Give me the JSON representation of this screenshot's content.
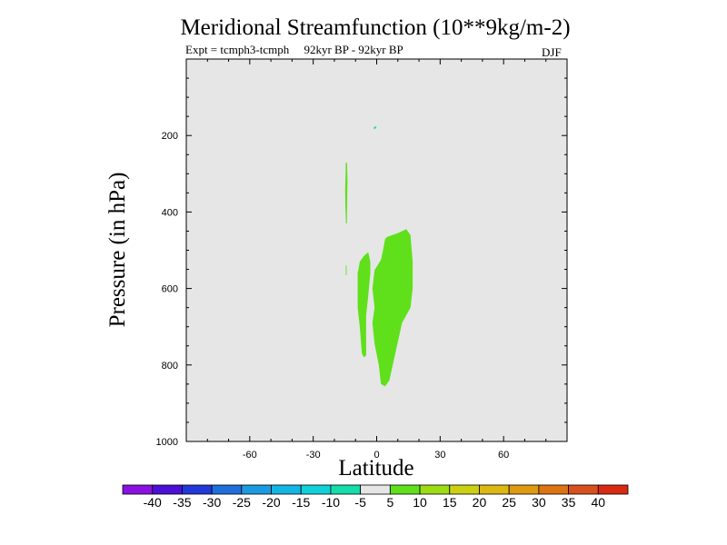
{
  "chart_data": {
    "type": "contour",
    "title": "Meridional Streamfunction (10**9kg/m-2)",
    "subtitle": "Expt = tcmph3-tcmph     92kyr BP - 92kyr BP",
    "season": "DJF",
    "xlabel": "Latitude",
    "ylabel": "Pressure (in hPa)",
    "xlim": [
      -90,
      90
    ],
    "ylim": [
      1000,
      0
    ],
    "xticks": [
      -60,
      -30,
      0,
      30,
      60
    ],
    "xtick_labels": [
      "-60",
      "-30",
      "0",
      "30",
      "60"
    ],
    "yticks": [
      200,
      400,
      600,
      800,
      1000
    ],
    "ytick_labels": [
      "200",
      "400",
      "600",
      "800",
      "1000"
    ],
    "background_color": "#e6e6e6",
    "colorbar": {
      "levels": [
        "-40",
        "-35",
        "-30",
        "-25",
        "-20",
        "-15",
        "-10",
        "-5",
        "5",
        "10",
        "15",
        "20",
        "25",
        "30",
        "35",
        "40"
      ],
      "colors": [
        "#8a11e0",
        "#4b0fd6",
        "#2238d8",
        "#1e6fdc",
        "#1b9ae0",
        "#14b5e2",
        "#12d0d8",
        "#14dcaa",
        "#e6e6e6",
        "#5fe01b",
        "#9ddc14",
        "#ccd012",
        "#dcb814",
        "#e09a12",
        "#dc7414",
        "#d8501c",
        "#d82a12"
      ]
    },
    "regions": [
      {
        "name": "positive-region-large",
        "level_range": "5 to 10",
        "color": "#5fe01b",
        "points": [
          [
            5,
            465
          ],
          [
            10,
            455
          ],
          [
            14,
            445
          ],
          [
            16,
            460
          ],
          [
            17,
            530
          ],
          [
            17,
            600
          ],
          [
            16,
            650
          ],
          [
            12,
            690
          ],
          [
            10,
            740
          ],
          [
            8,
            790
          ],
          [
            7,
            815
          ],
          [
            6,
            840
          ],
          [
            4,
            856
          ],
          [
            2,
            850
          ],
          [
            1,
            800
          ],
          [
            -1,
            745
          ],
          [
            -2,
            690
          ],
          [
            -1,
            650
          ],
          [
            -2,
            600
          ],
          [
            -1,
            552
          ],
          [
            2,
            525
          ],
          [
            3,
            500
          ],
          [
            4,
            470
          ]
        ]
      },
      {
        "name": "positive-region-west",
        "level_range": "5 to 10",
        "color": "#5fe01b",
        "points": [
          [
            -4,
            505
          ],
          [
            -3,
            530
          ],
          [
            -3,
            560
          ],
          [
            -4,
            620
          ],
          [
            -5,
            670
          ],
          [
            -5,
            735
          ],
          [
            -5,
            775
          ],
          [
            -6,
            780
          ],
          [
            -7,
            770
          ],
          [
            -8,
            700
          ],
          [
            -9,
            650
          ],
          [
            -9,
            560
          ],
          [
            -8,
            530
          ],
          [
            -6,
            515
          ]
        ]
      },
      {
        "name": "positive-sliver-upper",
        "level_range": "5 to 10",
        "color": "#5fe01b",
        "points": [
          [
            -14.6,
            270
          ],
          [
            -14,
            272
          ],
          [
            -13.8,
            320
          ],
          [
            -13.9,
            360
          ],
          [
            -14.1,
            430
          ],
          [
            -14.5,
            430
          ],
          [
            -14.8,
            380
          ],
          [
            -14.9,
            340
          ],
          [
            -14.7,
            300
          ]
        ]
      },
      {
        "name": "positive-speck-lower",
        "level_range": "5 to 10",
        "color": "#5fe01b",
        "points": [
          [
            -14.6,
            540
          ],
          [
            -14.2,
            540
          ],
          [
            -14.2,
            565
          ],
          [
            -14.6,
            565
          ]
        ]
      },
      {
        "name": "speck-top",
        "level_range": "-5 to -10",
        "color": "#14dcaa",
        "points": [
          [
            -1.5,
            180
          ],
          [
            -1,
            177
          ],
          [
            0,
            176
          ],
          [
            -0.5,
            182
          ],
          [
            -1.2,
            183
          ]
        ]
      }
    ]
  }
}
